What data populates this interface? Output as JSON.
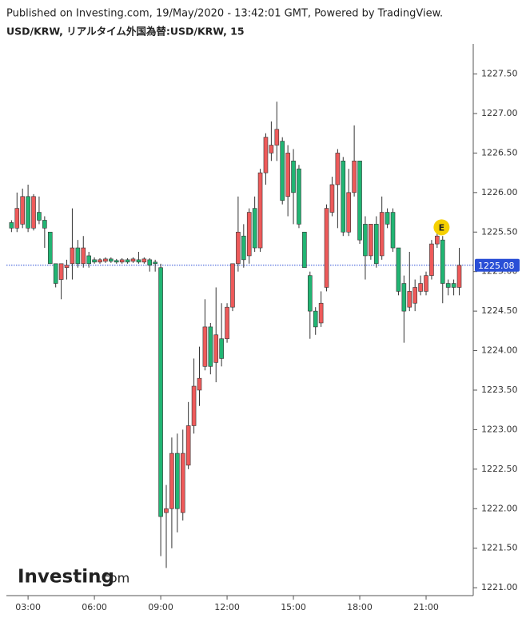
{
  "chart_data": {
    "type": "candlestick",
    "title": "Published on Investing.com, 19/May/2020 - 13:42:01 GMT, Powered by TradingView.",
    "subtitle": "USD/KRW, リアルタイム外国為替:USD/KRW, 15",
    "logo": {
      "name": "Investing",
      "suffix": ".com"
    },
    "up_color": "#ee5a5a",
    "down_color": "#21b573",
    "xlim": [
      2.02,
      23.06
    ],
    "xticks": [
      {
        "value": 3,
        "label": "03:00"
      },
      {
        "value": 6,
        "label": "06:00"
      },
      {
        "value": 9,
        "label": "09:00"
      },
      {
        "value": 12,
        "label": "12:00"
      },
      {
        "value": 15,
        "label": "15:00"
      },
      {
        "value": 18,
        "label": "18:00"
      },
      {
        "value": 21,
        "label": "21:00"
      }
    ],
    "ylim": [
      1220.9,
      1227.88
    ],
    "yticks": [
      {
        "value": 1221,
        "label": "1221.00"
      },
      {
        "value": 1221.5,
        "label": "1221.50"
      },
      {
        "value": 1222,
        "label": "1222.00"
      },
      {
        "value": 1222.5,
        "label": "1222.50"
      },
      {
        "value": 1223,
        "label": "1223.00"
      },
      {
        "value": 1223.5,
        "label": "1223.50"
      },
      {
        "value": 1224,
        "label": "1224.00"
      },
      {
        "value": 1224.5,
        "label": "1224.50"
      },
      {
        "value": 1225,
        "label": "1225.00"
      },
      {
        "value": 1225.5,
        "label": "1225.50"
      },
      {
        "value": 1226,
        "label": "1226.00"
      },
      {
        "value": 1226.5,
        "label": "1226.50"
      },
      {
        "value": 1227,
        "label": "1227.00"
      },
      {
        "value": 1227.5,
        "label": "1227.50"
      }
    ],
    "last_price": 1225.08,
    "event_marker": {
      "label": "E",
      "x": 21.7,
      "y": 1225.56
    },
    "x": [
      2.25,
      2.5,
      2.75,
      3,
      3.25,
      3.5,
      3.75,
      4,
      4.25,
      4.5,
      4.75,
      5,
      5.25,
      5.5,
      5.75,
      6,
      6.25,
      6.5,
      6.75,
      7,
      7.25,
      7.5,
      7.75,
      8,
      8.25,
      8.5,
      8.75,
      9,
      9.25,
      9.5,
      9.75,
      10,
      10.25,
      10.5,
      10.75,
      11,
      11.25,
      11.5,
      11.75,
      12,
      12.25,
      12.5,
      12.75,
      13,
      13.25,
      13.5,
      13.75,
      14,
      14.25,
      14.5,
      14.75,
      15,
      15.25,
      15.5,
      15.75,
      16,
      16.25,
      16.5,
      16.75,
      17,
      17.25,
      17.5,
      17.75,
      18,
      18.25,
      18.5,
      18.75,
      19,
      19.25,
      19.5,
      19.75,
      20,
      20.25,
      20.5,
      20.75,
      21,
      21.25,
      21.5,
      21.75,
      22,
      22.25,
      22.5
    ],
    "open": [
      1225.62,
      1225.55,
      1225.6,
      1225.95,
      1225.55,
      1225.75,
      1225.65,
      1225.5,
      1225.1,
      1224.9,
      1225.05,
      1225.1,
      1225.3,
      1225.1,
      1225.2,
      1225.15,
      1225.12,
      1225.13,
      1225.16,
      1225.14,
      1225.12,
      1225.15,
      1225.13,
      1225.15,
      1225.12,
      1225.15,
      1225.12,
      1225.05,
      1221.95,
      1222.0,
      1222.7,
      1221.95,
      1222.55,
      1223.05,
      1223.5,
      1223.8,
      1224.3,
      1223.85,
      1224.15,
      1224.15,
      1224.55,
      1225.1,
      1225.45,
      1225.2,
      1225.8,
      1225.3,
      1226.25,
      1226.5,
      1226.6,
      1226.65,
      1225.95,
      1226.4,
      1226.3,
      1225.5,
      1224.95,
      1224.5,
      1224.35,
      1224.8,
      1225.75,
      1226.1,
      1226.4,
      1225.5,
      1226.0,
      1226.4,
      1225.6,
      1225.2,
      1225.6,
      1225.2,
      1225.75,
      1225.75,
      1225.3,
      1224.85,
      1224.55,
      1224.6,
      1224.75,
      1224.75,
      1224.95,
      1225.35,
      1225.4,
      1224.85,
      1224.85,
      1224.8
    ],
    "high": [
      1225.65,
      1226.0,
      1226.05,
      1226.1,
      1225.98,
      1225.95,
      1225.7,
      1225.5,
      1225.1,
      1225.1,
      1225.15,
      1225.8,
      1225.4,
      1225.45,
      1225.25,
      1225.18,
      1225.17,
      1225.18,
      1225.18,
      1225.16,
      1225.17,
      1225.17,
      1225.18,
      1225.25,
      1225.18,
      1225.17,
      1225.15,
      1225.1,
      1222.3,
      1222.9,
      1222.95,
      1223.0,
      1223.35,
      1223.9,
      1224.05,
      1224.65,
      1224.35,
      1224.8,
      1224.6,
      1224.6,
      1225.1,
      1225.95,
      1225.6,
      1225.8,
      1225.95,
      1226.3,
      1226.75,
      1226.9,
      1227.15,
      1226.7,
      1226.6,
      1226.55,
      1226.35,
      1225.5,
      1225.0,
      1224.55,
      1224.75,
      1225.85,
      1226.2,
      1226.55,
      1226.45,
      1226.3,
      1226.85,
      1226.4,
      1225.7,
      1225.6,
      1225.7,
      1225.95,
      1225.8,
      1225.8,
      1225.3,
      1224.95,
      1225.25,
      1224.9,
      1224.95,
      1225.0,
      1225.4,
      1225.55,
      1225.45,
      1224.9,
      1224.9,
      1225.3
    ],
    "low": [
      1225.5,
      1225.5,
      1225.55,
      1225.5,
      1225.52,
      1225.6,
      1225.3,
      1225.1,
      1224.8,
      1224.65,
      1224.9,
      1224.9,
      1225.05,
      1225.05,
      1225.05,
      1225.1,
      1225.1,
      1225.11,
      1225.11,
      1225.1,
      1225.1,
      1225.1,
      1225.11,
      1225.1,
      1225.1,
      1225.0,
      1225.0,
      1221.4,
      1221.25,
      1221.5,
      1221.7,
      1221.85,
      1222.5,
      1222.95,
      1223.3,
      1223.75,
      1223.7,
      1223.6,
      1223.8,
      1224.1,
      1224.5,
      1225.0,
      1225.05,
      1225.1,
      1225.25,
      1225.25,
      1226.1,
      1226.4,
      1226.4,
      1225.85,
      1225.7,
      1225.6,
      1225.55,
      1225.05,
      1224.15,
      1224.2,
      1224.3,
      1224.75,
      1225.7,
      1225.55,
      1225.45,
      1225.45,
      1225.95,
      1225.35,
      1224.9,
      1225.15,
      1225.05,
      1225.15,
      1225.55,
      1225.25,
      1224.7,
      1224.1,
      1224.5,
      1224.5,
      1224.7,
      1224.7,
      1224.9,
      1225.3,
      1224.6,
      1224.7,
      1224.7,
      1224.7
    ],
    "close": [
      1225.55,
      1225.8,
      1225.95,
      1225.55,
      1225.95,
      1225.65,
      1225.55,
      1225.1,
      1224.85,
      1225.1,
      1225.08,
      1225.3,
      1225.1,
      1225.3,
      1225.1,
      1225.12,
      1225.15,
      1225.16,
      1225.13,
      1225.12,
      1225.15,
      1225.12,
      1225.16,
      1225.12,
      1225.16,
      1225.08,
      1225.1,
      1221.9,
      1222.0,
      1222.7,
      1222.0,
      1222.7,
      1223.05,
      1223.55,
      1223.65,
      1224.3,
      1223.8,
      1224.2,
      1223.9,
      1224.55,
      1225.1,
      1225.5,
      1225.15,
      1225.75,
      1225.3,
      1226.25,
      1226.7,
      1226.6,
      1226.8,
      1225.9,
      1226.5,
      1226.0,
      1225.6,
      1225.05,
      1224.5,
      1224.3,
      1224.6,
      1225.8,
      1226.1,
      1226.5,
      1225.5,
      1226.0,
      1226.4,
      1225.4,
      1225.2,
      1225.6,
      1225.1,
      1225.75,
      1225.6,
      1225.3,
      1224.75,
      1224.5,
      1224.75,
      1224.8,
      1224.85,
      1224.95,
      1225.35,
      1225.45,
      1224.85,
      1224.8,
      1224.8,
      1225.08
    ]
  }
}
